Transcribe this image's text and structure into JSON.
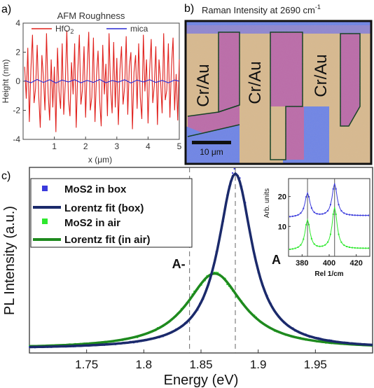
{
  "panels": {
    "a": "a)",
    "b": "b)",
    "c": "c)"
  },
  "chart_data": [
    {
      "id": "afm",
      "type": "line",
      "title": "AFM Roughness",
      "xlabel": "x (μm)",
      "ylabel": "Height (nm)",
      "xlim": [
        0,
        5
      ],
      "ylim": [
        -4,
        4
      ],
      "xticks": [
        1,
        2,
        3,
        4,
        5
      ],
      "yticks": [
        -4,
        -2,
        0,
        2,
        4
      ],
      "grid": false,
      "legend": "top",
      "series": [
        {
          "name": "HfO",
          "name_sub": "2",
          "color": "#e0201c",
          "x": [
            0.05,
            0.1,
            0.15,
            0.2,
            0.25,
            0.3,
            0.35,
            0.4,
            0.45,
            0.5,
            0.55,
            0.6,
            0.65,
            0.7,
            0.75,
            0.8,
            0.85,
            0.9,
            0.95,
            1.0,
            1.05,
            1.1,
            1.15,
            1.2,
            1.25,
            1.3,
            1.35,
            1.4,
            1.45,
            1.5,
            1.55,
            1.6,
            1.65,
            1.7,
            1.75,
            1.8,
            1.85,
            1.9,
            1.95,
            2.0,
            2.05,
            2.1,
            2.15,
            2.2,
            2.25,
            2.3,
            2.35,
            2.4,
            2.45,
            2.5,
            2.55,
            2.6,
            2.65,
            2.7,
            2.75,
            2.8,
            2.85,
            2.9,
            2.95,
            3.0,
            3.05,
            3.1,
            3.15,
            3.2,
            3.25,
            3.3,
            3.35,
            3.4,
            3.45,
            3.5,
            3.55,
            3.6,
            3.65,
            3.7,
            3.75,
            3.8,
            3.85,
            3.9,
            3.95,
            4.0,
            4.05,
            4.1,
            4.15,
            4.2,
            4.25,
            4.3,
            4.35,
            4.4,
            4.45,
            4.5,
            4.55,
            4.6,
            4.65,
            4.7,
            4.75,
            4.8,
            4.85,
            4.9,
            4.95,
            5.0
          ],
          "values": [
            1.0,
            -1.2,
            2.3,
            -2.8,
            0.8,
            3.2,
            -1.5,
            -0.5,
            2.5,
            -1.0,
            -3.2,
            1.8,
            0.3,
            -2.0,
            3.3,
            -0.8,
            -2.7,
            1.5,
            -1.8,
            1.0,
            -3.5,
            2.3,
            -0.7,
            -1.9,
            2.6,
            -2.3,
            -0.2,
            3.5,
            -1.2,
            -2.4,
            1.3,
            -0.9,
            2.6,
            -3.2,
            0.6,
            3.2,
            -1.6,
            -0.6,
            2.4,
            -2.5,
            0.7,
            3.4,
            -2.0,
            -1.1,
            3.0,
            -2.8,
            0.4,
            2.1,
            -1.3,
            -3.1,
            2.5,
            -0.9,
            1.2,
            -2.4,
            3.3,
            -0.5,
            -2.2,
            2.7,
            -1.8,
            1.6,
            -3.0,
            0.8,
            2.4,
            -1.6,
            -0.4,
            3.1,
            -2.3,
            1.0,
            2.0,
            -3.3,
            0.6,
            1.8,
            -1.9,
            2.6,
            -1.1,
            -2.6,
            3.2,
            -0.7,
            1.5,
            -2.9,
            0.7,
            2.9,
            -1.5,
            -0.3,
            2.4,
            -3.0,
            1.5,
            0.1,
            -2.2,
            3.3,
            -1.3,
            -0.6,
            2.6,
            -2.5,
            1.0,
            3.0,
            -2.0,
            0.5,
            -2.7,
            1.5
          ]
        },
        {
          "name": "mica",
          "color": "#2a2ad4",
          "x": [
            0.05,
            0.25,
            0.45,
            0.65,
            0.85,
            1.05,
            1.25,
            1.45,
            1.65,
            1.85,
            2.05,
            2.25,
            2.45,
            2.65,
            2.85,
            3.05,
            3.25,
            3.45,
            3.65,
            3.85,
            4.05,
            4.25,
            4.45,
            4.65,
            4.85,
            5.0
          ],
          "values": [
            0.05,
            -0.1,
            0.12,
            -0.08,
            0.1,
            -0.12,
            0.08,
            -0.05,
            0.1,
            -0.1,
            0.06,
            -0.08,
            0.12,
            -0.1,
            0.05,
            -0.06,
            0.1,
            -0.12,
            0.08,
            -0.05,
            0.1,
            -0.08,
            0.06,
            -0.1,
            0.08,
            0.0
          ]
        }
      ]
    },
    {
      "id": "pl",
      "type": "line",
      "xlabel": "Energy (eV)",
      "ylabel": "PL Intensity (a.u.)",
      "xlim": [
        1.7,
        2.0
      ],
      "xticks": [
        1.75,
        1.8,
        1.85,
        1.9,
        1.95
      ],
      "legend": "top-left",
      "series": [
        {
          "name": "MoS2 in box",
          "color": "#3a3adc",
          "style": "points",
          "center": 1.88,
          "width": 0.018,
          "peak": 1.0
        },
        {
          "name": "Lorentz fit (box)",
          "color": "#1b2a6b",
          "style": "line",
          "center": 1.88,
          "width": 0.018,
          "peak": 1.0
        },
        {
          "name": "MoS2 in air",
          "color": "#2ee82e",
          "style": "points",
          "center": 1.862,
          "width": 0.03,
          "peak": 0.43
        },
        {
          "name": "Lorentz fit (in air)",
          "color": "#1e8a1e",
          "style": "line",
          "center": 1.862,
          "width": 0.03,
          "peak": 0.43
        }
      ],
      "annotations": [
        {
          "text": "A-",
          "x": 1.84
        },
        {
          "text": "A",
          "x": 1.88
        }
      ]
    },
    {
      "id": "raman_inset",
      "type": "line",
      "xlabel": "Rel 1/cm",
      "ylabel": "Arb. units",
      "xlim": [
        370,
        430
      ],
      "ylim": [
        0,
        26
      ],
      "xticks": [
        380,
        400,
        420
      ],
      "yticks": [
        10,
        20
      ],
      "vlines": [
        384,
        404
      ],
      "series": [
        {
          "name": "box",
          "color": "#3a3adc",
          "peaks": [
            384,
            404
          ],
          "base": 13,
          "amps": [
            8,
            11
          ]
        },
        {
          "name": "air",
          "color": "#2ee82e",
          "peaks": [
            384,
            404
          ],
          "base": 2,
          "amps": [
            10,
            14
          ]
        }
      ]
    }
  ],
  "raman_map": {
    "title": "Raman Intensity at 2690 cm",
    "title_sup": "-1",
    "labels": [
      "Cr/Au",
      "Cr/Au",
      "Cr/Au"
    ],
    "scalebar": "10 μm",
    "colors": {
      "gold": "#d8b98e",
      "magenta": "#bb6aa8",
      "blue": "#6e84e6",
      "frame": "#111111"
    }
  }
}
